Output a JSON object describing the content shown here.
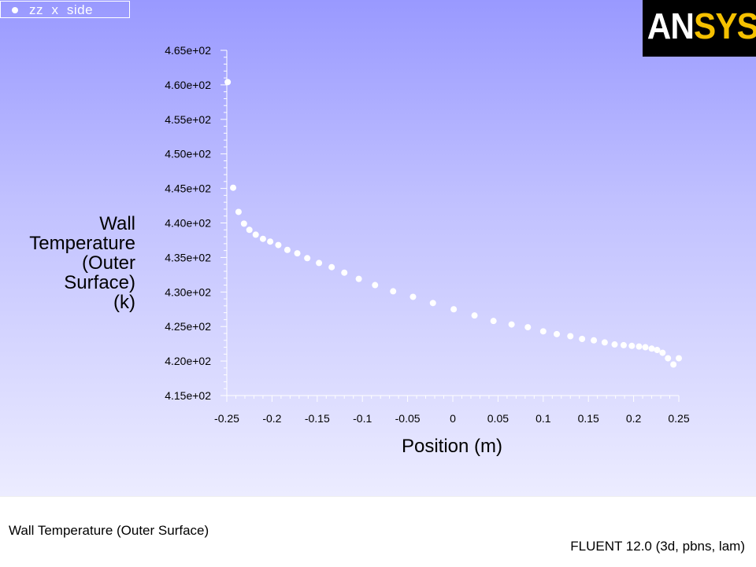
{
  "legend": {
    "label": "zz  x  side",
    "marker_color": "#ffffff"
  },
  "logo": {
    "text_part1": "AN",
    "text_part2": "SYS",
    "accent_color": "#f5c000",
    "background": "#000000"
  },
  "footer": {
    "title": "Wall Temperature (Outer Surface)",
    "version": "FLUENT 12.0 (3d, pbns, lam)"
  },
  "colors": {
    "background_top": "#9999ff",
    "background_bottom": "#ececff",
    "points": "#ffffff",
    "axis": "#ffffff"
  },
  "chart_data": {
    "type": "scatter",
    "title": "Wall Temperature (Outer Surface)",
    "xlabel": "Position (m)",
    "ylabel": "Wall Temperature (Outer Surface) (k)",
    "ylabel_lines": [
      "Wall",
      "Temperature",
      "(Outer",
      "Surface)",
      "(k)"
    ],
    "xlim": [
      -0.25,
      0.25
    ],
    "ylim": [
      415,
      465
    ],
    "x_ticks": [
      -0.25,
      -0.2,
      -0.15,
      -0.1,
      -0.05,
      0,
      0.05,
      0.1,
      0.15,
      0.2,
      0.25
    ],
    "x_tick_labels": [
      "-0.25",
      "-0.2",
      "-0.15",
      "-0.1",
      "-0.05",
      "0",
      "0.05",
      "0.1",
      "0.15",
      "0.2",
      "0.25"
    ],
    "y_ticks": [
      415,
      420,
      425,
      430,
      435,
      440,
      445,
      450,
      455,
      460,
      465
    ],
    "y_tick_labels": [
      "4.15e+02",
      "4.20e+02",
      "4.25e+02",
      "4.30e+02",
      "4.35e+02",
      "4.40e+02",
      "4.45e+02",
      "4.50e+02",
      "4.55e+02",
      "4.60e+02",
      "4.65e+02"
    ],
    "legend_position": "top-left",
    "grid": false,
    "series": [
      {
        "name": "zz  x  side",
        "x": [
          -0.249,
          -0.243,
          -0.237,
          -0.231,
          -0.225,
          -0.218,
          -0.21,
          -0.202,
          -0.193,
          -0.183,
          -0.172,
          -0.161,
          -0.148,
          -0.134,
          -0.12,
          -0.104,
          -0.086,
          -0.066,
          -0.044,
          -0.022,
          0.001,
          0.024,
          0.045,
          0.065,
          0.083,
          0.1,
          0.115,
          0.13,
          0.143,
          0.156,
          0.168,
          0.179,
          0.189,
          0.198,
          0.206,
          0.213,
          0.22,
          0.226,
          0.232,
          0.238,
          0.244,
          0.25
        ],
        "y": [
          460.4,
          445.1,
          441.6,
          439.9,
          439.0,
          438.3,
          437.7,
          437.3,
          436.8,
          436.1,
          435.6,
          434.9,
          434.2,
          433.6,
          432.8,
          431.9,
          431.0,
          430.1,
          429.3,
          428.4,
          427.5,
          426.6,
          425.8,
          425.3,
          424.9,
          424.3,
          423.9,
          423.6,
          423.2,
          423.0,
          422.7,
          422.4,
          422.3,
          422.2,
          422.1,
          422.0,
          421.8,
          421.6,
          421.2,
          420.4,
          419.5,
          420.4
        ]
      }
    ]
  }
}
